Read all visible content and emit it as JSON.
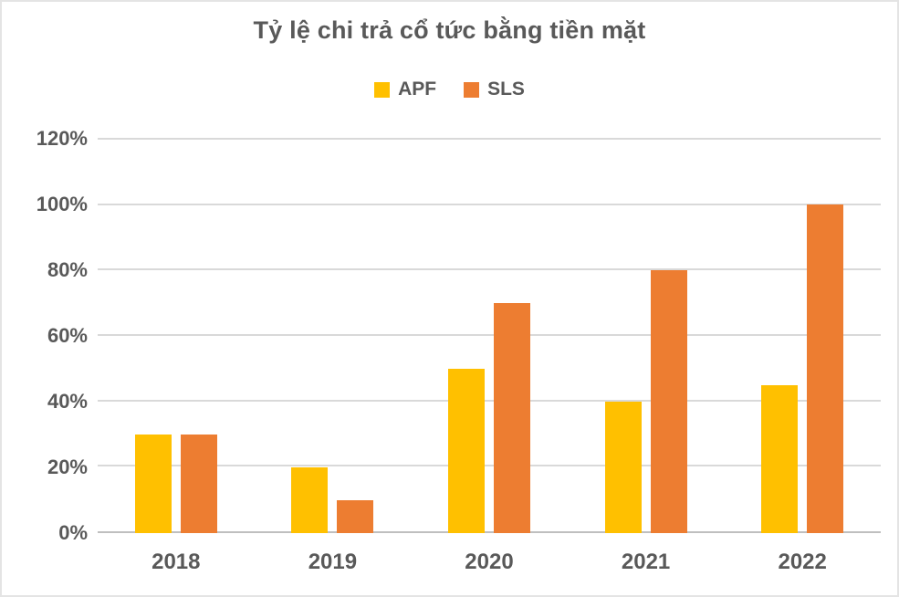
{
  "chart_data": {
    "type": "bar",
    "title": "Tỷ lệ chi trả cổ tức bằng tiền mặt",
    "categories": [
      "2018",
      "2019",
      "2020",
      "2021",
      "2022"
    ],
    "series": [
      {
        "name": "APF",
        "color": "#FFC000",
        "values": [
          30,
          20,
          50,
          40,
          45
        ]
      },
      {
        "name": "SLS",
        "color": "#ED7D31",
        "values": [
          30,
          10,
          70,
          80,
          100
        ]
      }
    ],
    "xlabel": "",
    "ylabel": "",
    "ylim": [
      0,
      120
    ],
    "ytick_step": 20,
    "ytick_labels": [
      "0%",
      "20%",
      "40%",
      "60%",
      "80%",
      "100%",
      "120%"
    ],
    "grid": true,
    "legend_position": "top",
    "text_color": "#595959",
    "grid_color": "#D9D9D9",
    "axis_color": "#BFBFBF",
    "background_color": "#FFFFFF"
  }
}
